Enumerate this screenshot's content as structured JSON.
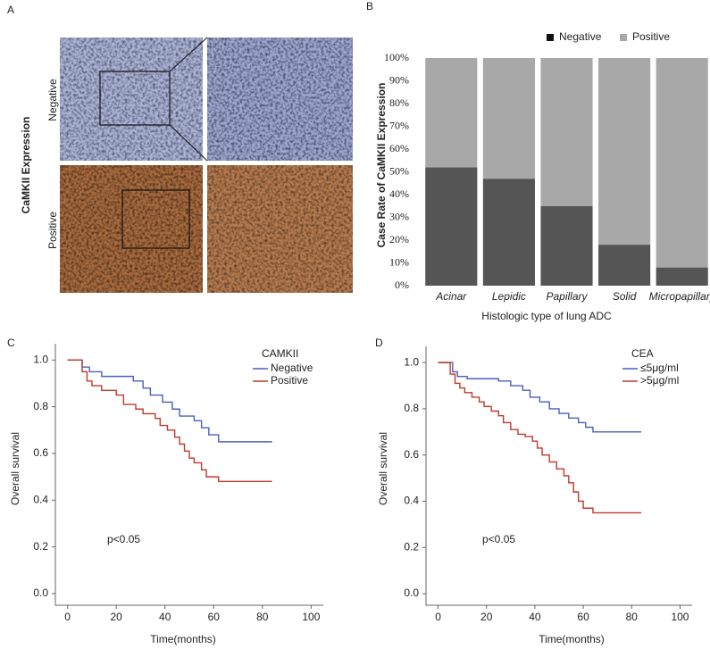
{
  "panel_a": {
    "label": "A",
    "title": "CaMKII Expression",
    "rows": [
      "Negative",
      "Positive"
    ]
  },
  "chart_data": [
    {
      "type": "bar",
      "panel_label": "B",
      "stacked": true,
      "y_label": "Case Rate of CaMKII Expression",
      "x_label": "Histologic type of lung ADC",
      "categories": [
        "Acinar",
        "Lepidic",
        "Papillary",
        "Solid",
        "Micropapillary"
      ],
      "series": [
        {
          "name": "Negative",
          "color": "#555555",
          "values": [
            52,
            47,
            35,
            18,
            8
          ]
        },
        {
          "name": "Positive",
          "color": "#a8a8a8",
          "values": [
            48,
            53,
            65,
            82,
            92
          ]
        }
      ],
      "ylim": [
        0,
        100
      ],
      "yticks": [
        {
          "value": 0,
          "label": "0%"
        },
        {
          "value": 10,
          "label": "10%"
        },
        {
          "value": 20,
          "label": "20%"
        },
        {
          "value": 30,
          "label": "30%"
        },
        {
          "value": 40,
          "label": "40%"
        },
        {
          "value": 50,
          "label": "50%"
        },
        {
          "value": 60,
          "label": "60%"
        },
        {
          "value": 70,
          "label": "70%"
        },
        {
          "value": 80,
          "label": "80%"
        },
        {
          "value": 90,
          "label": "90%"
        },
        {
          "value": 100,
          "label": "100%"
        }
      ],
      "legend": "top"
    },
    {
      "type": "line",
      "panel_label": "C",
      "step": true,
      "y_label": "Overall survival",
      "x_label": "Time(months)",
      "legend_title": "CAMKII",
      "annotation": "p<0.05",
      "series": [
        {
          "name": "Negative",
          "color": "#4a5fc1",
          "x": [
            0,
            6,
            9,
            14,
            27,
            31,
            34,
            39,
            43,
            46,
            52,
            55,
            58,
            62,
            84
          ],
          "values": [
            1.0,
            0.97,
            0.95,
            0.93,
            0.91,
            0.88,
            0.85,
            0.82,
            0.79,
            0.76,
            0.74,
            0.71,
            0.68,
            0.65,
            0.65
          ]
        },
        {
          "name": "Positive",
          "color": "#c0392b",
          "x": [
            0,
            6,
            8,
            10,
            14,
            20,
            23,
            28,
            31,
            36,
            38,
            41,
            44,
            46,
            48,
            50,
            52,
            55,
            57,
            62,
            84
          ],
          "values": [
            1.0,
            0.95,
            0.91,
            0.89,
            0.87,
            0.85,
            0.81,
            0.79,
            0.77,
            0.75,
            0.72,
            0.7,
            0.67,
            0.64,
            0.61,
            0.58,
            0.56,
            0.53,
            0.5,
            0.48,
            0.48
          ]
        }
      ],
      "xlim": [
        -5,
        105
      ],
      "xticks": [
        0,
        20,
        40,
        60,
        80,
        100
      ],
      "ylim": [
        -0.05,
        1.07
      ],
      "yticks": [
        {
          "value": 0,
          "label": "0.0"
        },
        0.2,
        0.4,
        0.6,
        0.8,
        {
          "value": 1,
          "label": "1.0"
        }
      ],
      "legend": "upper right"
    },
    {
      "type": "line",
      "panel_label": "D",
      "step": true,
      "y_label": "Overall survival",
      "x_label": "Time(months)",
      "legend_title": "CEA",
      "annotation": "p<0.05",
      "series": [
        {
          "name": "≤5μg/ml",
          "color": "#4a5fc1",
          "x": [
            0,
            6,
            8,
            12,
            25,
            30,
            35,
            38,
            42,
            46,
            50,
            54,
            58,
            61,
            64,
            84
          ],
          "values": [
            1.0,
            0.96,
            0.94,
            0.93,
            0.92,
            0.9,
            0.88,
            0.85,
            0.83,
            0.8,
            0.78,
            0.76,
            0.74,
            0.72,
            0.7,
            0.7
          ]
        },
        {
          "name": ">5μg/ml",
          "color": "#c0392b",
          "x": [
            0,
            5,
            7,
            9,
            11,
            14,
            17,
            19,
            22,
            25,
            27,
            30,
            33,
            36,
            39,
            41,
            43,
            46,
            49,
            52,
            54,
            56,
            58,
            60,
            64,
            84
          ],
          "values": [
            1.0,
            0.95,
            0.91,
            0.89,
            0.87,
            0.85,
            0.83,
            0.81,
            0.79,
            0.77,
            0.74,
            0.71,
            0.69,
            0.68,
            0.66,
            0.63,
            0.6,
            0.57,
            0.54,
            0.51,
            0.48,
            0.44,
            0.4,
            0.37,
            0.35,
            0.35
          ]
        }
      ],
      "xlim": [
        -5,
        105
      ],
      "xticks": [
        0,
        20,
        40,
        60,
        80,
        100
      ],
      "ylim": [
        -0.05,
        1.07
      ],
      "yticks": [
        {
          "value": 0,
          "label": "0.0"
        },
        0.2,
        0.4,
        0.6,
        0.8,
        {
          "value": 1,
          "label": "1.0"
        }
      ],
      "legend": "upper right"
    }
  ]
}
